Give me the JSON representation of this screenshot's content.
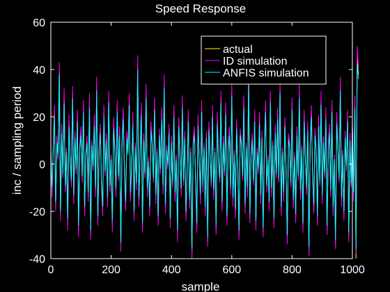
{
  "chart_data": {
    "type": "line",
    "title": "Speed Response",
    "xlabel": "sample",
    "ylabel": "inc / sampling period",
    "xlim": [
      0,
      1000
    ],
    "ylim": [
      -40,
      60
    ],
    "xticks": [
      0,
      200,
      400,
      600,
      800,
      1000
    ],
    "yticks": [
      -40,
      -20,
      0,
      20,
      40,
      60
    ],
    "xtick_labels": [
      "0",
      "200",
      "400",
      "600",
      "800",
      "1000"
    ],
    "ytick_labels": [
      "-40",
      "-20",
      "0",
      "20",
      "40",
      "60"
    ],
    "grid": false,
    "legend_position": "top-right",
    "sample_interval": 4,
    "series": [
      {
        "name": "actual",
        "color": "#ffff00",
        "values": [
          5,
          -12,
          8,
          22,
          -18,
          10,
          3,
          40,
          -22,
          15,
          -5,
          28,
          -10,
          6,
          -25,
          18,
          2,
          -8,
          30,
          -15,
          12,
          -3,
          20,
          -28,
          8,
          14,
          -6,
          24,
          -20,
          4,
          10,
          -14,
          26,
          -30,
          9,
          -2,
          18,
          -12,
          33,
          -24,
          6,
          15,
          -8,
          -20,
          22,
          -4,
          11,
          -16,
          28,
          -10,
          3,
          -26,
          17,
          7,
          -12,
          24,
          -6,
          14,
          -35,
          9,
          21,
          -3,
          -18,
          12,
          5,
          27,
          -14,
          -2,
          19,
          -22,
          8,
          -9,
          42,
          -16,
          4,
          23,
          -27,
          11,
          -5,
          30,
          -12,
          2,
          -20,
          16,
          9,
          -7,
          25,
          -15,
          6,
          -24,
          13,
          -3,
          21,
          -11,
          34,
          -19,
          7,
          -1,
          15,
          -25,
          10,
          -9,
          22,
          -14,
          3,
          -30,
          18,
          5,
          -12,
          26,
          -8,
          12,
          -22,
          -4,
          20,
          -17,
          6,
          -38,
          9,
          14,
          -6,
          -27,
          18,
          3,
          -15,
          24,
          -10,
          8,
          -20,
          12,
          -33,
          16,
          4,
          -9,
          22,
          -13,
          6,
          -28,
          19,
          2,
          -7,
          28,
          -18,
          10,
          -4,
          23,
          -24,
          7,
          14,
          -11,
          31,
          -16,
          5,
          -21,
          17,
          -2,
          -30,
          13,
          9,
          -6,
          26,
          -19,
          8,
          -12,
          36,
          -23,
          4,
          11,
          -8,
          20,
          -26,
          6,
          -3,
          19,
          -15,
          12,
          -29,
          7,
          24,
          -10,
          3,
          -18,
          28,
          -12,
          9,
          -25,
          15,
          -5,
          21,
          -7,
          32,
          -20,
          6,
          -14,
          18,
          -2,
          -32,
          11,
          8,
          -9,
          25,
          -17,
          4,
          -23,
          14,
          -6,
          30,
          -13,
          7,
          -27,
          20,
          3,
          -11,
          16,
          -37,
          9,
          22,
          -4,
          -19,
          13,
          6,
          -24,
          18,
          -8,
          27,
          -15,
          10,
          -5,
          21,
          -28,
          7,
          15,
          -12,
          24,
          -20,
          3,
          -34,
          19,
          8,
          -7,
          33,
          -16,
          5,
          -22,
          12,
          -2,
          20,
          -31,
          11,
          -9,
          17,
          -14,
          26,
          -40,
          45,
          38
        ]
      },
      {
        "name": "ID simulation",
        "color": "#ff00ff",
        "values": [
          6,
          -14,
          9,
          25,
          -20,
          12,
          2,
          43,
          -24,
          17,
          -6,
          32,
          -12,
          7,
          -28,
          21,
          3,
          -10,
          33,
          -17,
          14,
          -4,
          23,
          -31,
          9,
          16,
          -8,
          27,
          -22,
          5,
          12,
          -16,
          30,
          -32,
          10,
          -3,
          21,
          -14,
          37,
          -26,
          7,
          17,
          -10,
          -22,
          25,
          -5,
          13,
          -18,
          31,
          -12,
          4,
          -29,
          20,
          8,
          -14,
          27,
          -7,
          16,
          -37,
          10,
          24,
          -4,
          -20,
          14,
          6,
          30,
          -16,
          -3,
          22,
          -24,
          9,
          -11,
          46,
          -18,
          5,
          26,
          -29,
          13,
          -6,
          34,
          -14,
          3,
          -22,
          18,
          10,
          -8,
          28,
          -17,
          7,
          -26,
          15,
          -4,
          24,
          -13,
          38,
          -21,
          8,
          -2,
          17,
          -27,
          12,
          -10,
          25,
          -16,
          4,
          -33,
          20,
          6,
          -14,
          29,
          -9,
          14,
          -24,
          -5,
          23,
          -19,
          7,
          -40,
          10,
          16,
          -7,
          -29,
          21,
          4,
          -17,
          27,
          -12,
          9,
          -22,
          14,
          -35,
          18,
          5,
          -10,
          25,
          -15,
          7,
          -30,
          22,
          3,
          -8,
          31,
          -20,
          12,
          -5,
          26,
          -26,
          8,
          16,
          -13,
          35,
          -18,
          6,
          -23,
          19,
          -3,
          -32,
          15,
          10,
          -7,
          29,
          -21,
          9,
          -14,
          40,
          -25,
          5,
          13,
          -9,
          23,
          -28,
          7,
          -4,
          22,
          -17,
          14,
          -31,
          8,
          27,
          -12,
          4,
          -20,
          31,
          -14,
          10,
          -27,
          17,
          -6,
          24,
          -8,
          36,
          -22,
          7,
          -16,
          20,
          -3,
          -34,
          13,
          9,
          -10,
          28,
          -19,
          5,
          -25,
          16,
          -7,
          34,
          -15,
          8,
          -29,
          23,
          4,
          -13,
          18,
          -39,
          10,
          25,
          -5,
          -21,
          15,
          7,
          -26,
          21,
          -9,
          31,
          -17,
          12,
          -6,
          24,
          -30,
          8,
          17,
          -14,
          27,
          -22,
          4,
          -36,
          22,
          9,
          -8,
          37,
          -18,
          6,
          -24,
          14,
          -3,
          23,
          -33,
          13,
          -10,
          19,
          -16,
          29,
          -38,
          50,
          41
        ]
      },
      {
        "name": "ANFIS simulation",
        "color": "#00ffff",
        "values": [
          4,
          -10,
          7,
          20,
          -16,
          9,
          4,
          38,
          -20,
          13,
          -4,
          26,
          -9,
          5,
          -23,
          16,
          1,
          -7,
          28,
          -13,
          11,
          -2,
          18,
          -26,
          7,
          12,
          -5,
          22,
          -18,
          3,
          9,
          -12,
          24,
          -28,
          8,
          -1,
          16,
          -10,
          31,
          -22,
          5,
          13,
          -7,
          -18,
          20,
          -3,
          10,
          -14,
          26,
          -9,
          2,
          -24,
          15,
          6,
          -10,
          22,
          -5,
          12,
          -33,
          8,
          19,
          -2,
          -16,
          11,
          4,
          25,
          -12,
          -1,
          17,
          -20,
          7,
          -8,
          40,
          -14,
          3,
          21,
          -25,
          10,
          -4,
          28,
          -10,
          1,
          -18,
          14,
          8,
          -6,
          23,
          -13,
          5,
          -22,
          12,
          -2,
          19,
          -9,
          32,
          -17,
          6,
          0,
          13,
          -23,
          9,
          -8,
          20,
          -12,
          2,
          -28,
          16,
          4,
          -10,
          24,
          -7,
          11,
          -20,
          -3,
          18,
          -15,
          5,
          -36,
          8,
          12,
          -5,
          -25,
          16,
          2,
          -13,
          22,
          -9,
          7,
          -18,
          11,
          -31,
          14,
          3,
          -8,
          20,
          -11,
          5,
          -26,
          17,
          1,
          -6,
          26,
          -16,
          9,
          -3,
          21,
          -22,
          6,
          12,
          -10,
          29,
          -14,
          4,
          -19,
          15,
          -1,
          -28,
          12,
          8,
          -5,
          24,
          -17,
          7,
          -10,
          34,
          -21,
          3,
          10,
          -7,
          18,
          -24,
          5,
          -2,
          17,
          -13,
          11,
          -27,
          6,
          22,
          -9,
          2,
          -16,
          26,
          -10,
          8,
          -23,
          13,
          -4,
          19,
          -6,
          30,
          -18,
          5,
          -12,
          16,
          -1,
          -30,
          10,
          7,
          -8,
          23,
          -15,
          3,
          -21,
          12,
          -5,
          28,
          -11,
          6,
          -25,
          18,
          2,
          -10,
          14,
          -35,
          8,
          20,
          -3,
          -17,
          12,
          5,
          -22,
          16,
          -7,
          25,
          -13,
          9,
          -4,
          19,
          -26,
          6,
          13,
          -11,
          22,
          -18,
          2,
          -32,
          17,
          7,
          -6,
          31,
          -14,
          4,
          -20,
          11,
          -1,
          18,
          -29,
          10,
          -8,
          15,
          -12,
          24,
          -36,
          42,
          36
        ]
      }
    ]
  }
}
